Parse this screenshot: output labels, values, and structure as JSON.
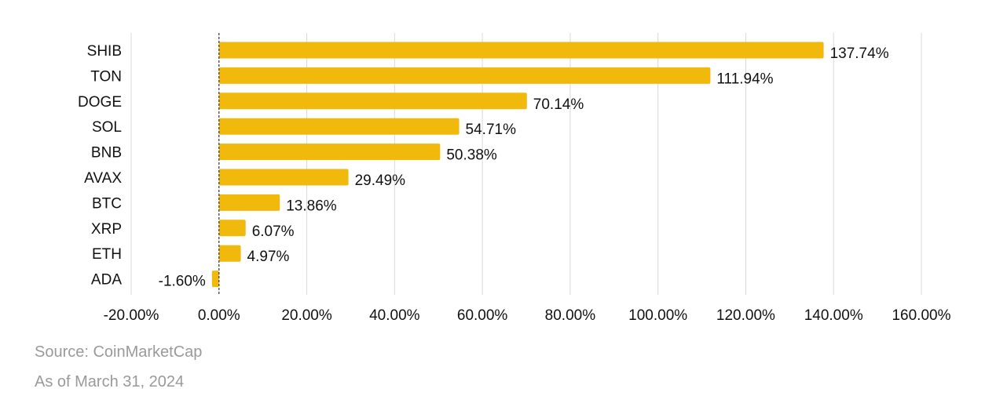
{
  "chart_data": {
    "type": "bar",
    "orientation": "horizontal",
    "categories": [
      "SHIB",
      "TON",
      "DOGE",
      "SOL",
      "BNB",
      "AVAX",
      "BTC",
      "XRP",
      "ETH",
      "ADA"
    ],
    "values": [
      137.74,
      111.94,
      70.14,
      54.71,
      50.38,
      29.49,
      13.86,
      6.07,
      4.97,
      -1.6
    ],
    "value_labels": [
      "137.74%",
      "111.94%",
      "70.14%",
      "54.71%",
      "50.38%",
      "29.49%",
      "13.86%",
      "6.07%",
      "4.97%",
      "-1.60%"
    ],
    "x_ticks": [
      -20,
      0,
      20,
      40,
      60,
      80,
      100,
      120,
      140,
      160
    ],
    "x_tick_labels": [
      "-20.00%",
      "0.00%",
      "20.00%",
      "40.00%",
      "60.00%",
      "80.00%",
      "100.00%",
      "120.00%",
      "140.00%",
      "160.00%"
    ],
    "xlim": [
      -20,
      160
    ],
    "grid": "vertical",
    "legend": "none",
    "title": "",
    "xlabel": "",
    "ylabel": "",
    "bar_color": "#F0B90B",
    "grid_color": "#d9d9d9",
    "zero_line_color": "#333333"
  },
  "footer": {
    "source": "Source: CoinMarketCap",
    "date": "As of March 31, 2024"
  }
}
